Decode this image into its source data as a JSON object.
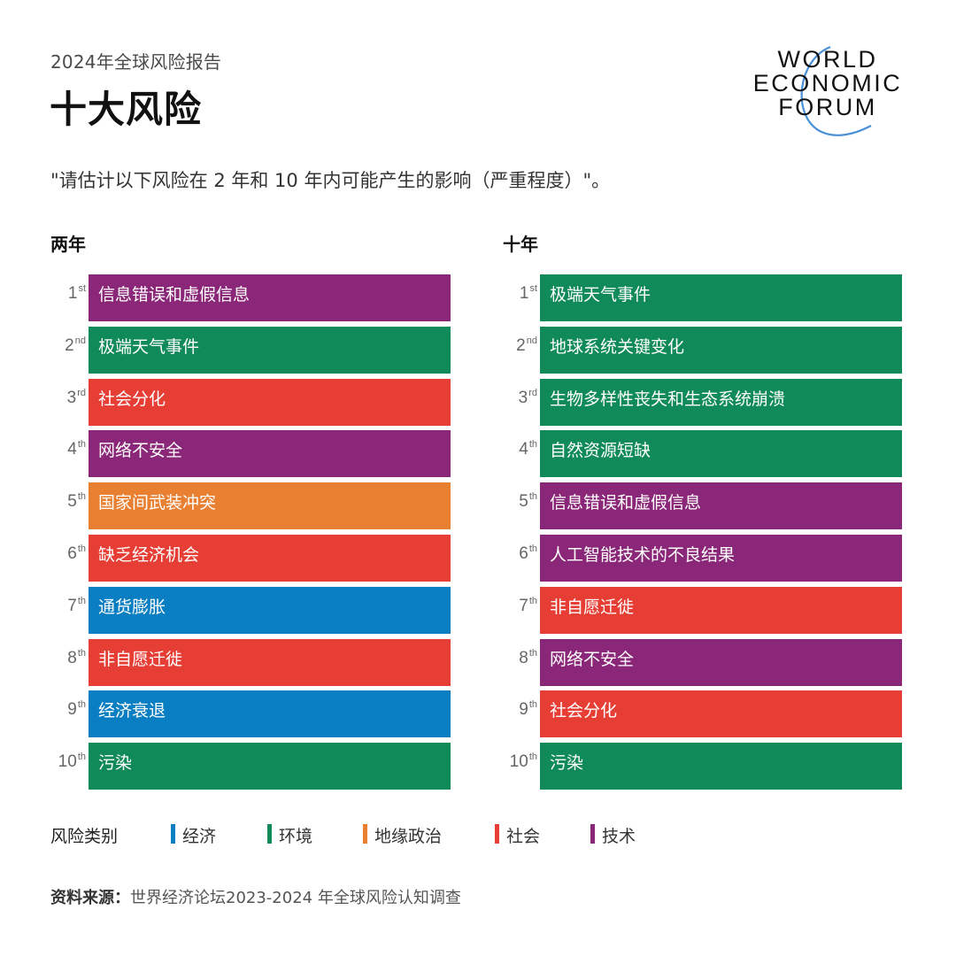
{
  "header": {
    "subtitle": "2024年全球风险报告",
    "title": "十大风险",
    "question": "\"请估计以下风险在 2 年和 10 年内可能产生的影响（严重程度）\"。"
  },
  "logo": {
    "lines": [
      "WORLD",
      "ECONOMIC",
      "FORUM"
    ],
    "arc_color": "#4a90d9"
  },
  "categories": {
    "economic": {
      "label": "经济",
      "color": "#0a7ec2"
    },
    "environmental": {
      "label": "环境",
      "color": "#0f8a58"
    },
    "geopolitical": {
      "label": "地缘政治",
      "color": "#e87f31"
    },
    "societal": {
      "label": "社会",
      "color": "#e63e35"
    },
    "technological": {
      "label": "技术",
      "color": "#8b2778"
    }
  },
  "legend": {
    "title": "风险类别",
    "items": [
      {
        "label": "经济",
        "color": "#0a7ec2"
      },
      {
        "label": "环境",
        "color": "#0f8a58"
      },
      {
        "label": "地缘政治",
        "color": "#e87f31"
      },
      {
        "label": "社会",
        "color": "#e63e35"
      },
      {
        "label": "技术",
        "color": "#8b2778"
      }
    ]
  },
  "source": {
    "label": "资料来源：",
    "text": "世界经济论坛2023-2024 年全球风险认知调查"
  },
  "chart_data": [
    {
      "type": "table",
      "title": "两年",
      "columns": [
        "rank",
        "risk",
        "category"
      ],
      "rows": [
        {
          "rank": "1",
          "suffix": "st",
          "risk": "信息错误和虚假信息",
          "category": "技术",
          "color": "#8b2778"
        },
        {
          "rank": "2",
          "suffix": "nd",
          "risk": "极端天气事件",
          "category": "环境",
          "color": "#0f8a58"
        },
        {
          "rank": "3",
          "suffix": "rd",
          "risk": "社会分化",
          "category": "社会",
          "color": "#e63e35"
        },
        {
          "rank": "4",
          "suffix": "th",
          "risk": "网络不安全",
          "category": "技术",
          "color": "#8b2778"
        },
        {
          "rank": "5",
          "suffix": "th",
          "risk": "国家间武装冲突",
          "category": "地缘政治",
          "color": "#e87f31"
        },
        {
          "rank": "6",
          "suffix": "th",
          "risk": "缺乏经济机会",
          "category": "社会",
          "color": "#e63e35"
        },
        {
          "rank": "7",
          "suffix": "th",
          "risk": "通货膨胀",
          "category": "经济",
          "color": "#0a7ec2"
        },
        {
          "rank": "8",
          "suffix": "th",
          "risk": "非自愿迁徙",
          "category": "社会",
          "color": "#e63e35"
        },
        {
          "rank": "9",
          "suffix": "th",
          "risk": "经济衰退",
          "category": "经济",
          "color": "#0a7ec2"
        },
        {
          "rank": "10",
          "suffix": "th",
          "risk": "污染",
          "category": "环境",
          "color": "#0f8a58"
        }
      ]
    },
    {
      "type": "table",
      "title": "十年",
      "columns": [
        "rank",
        "risk",
        "category"
      ],
      "rows": [
        {
          "rank": "1",
          "suffix": "st",
          "risk": "极端天气事件",
          "category": "环境",
          "color": "#0f8a58"
        },
        {
          "rank": "2",
          "suffix": "nd",
          "risk": "地球系统关键变化",
          "category": "环境",
          "color": "#0f8a58"
        },
        {
          "rank": "3",
          "suffix": "rd",
          "risk": "生物多样性丧失和生态系统崩溃",
          "category": "环境",
          "color": "#0f8a58"
        },
        {
          "rank": "4",
          "suffix": "th",
          "risk": "自然资源短缺",
          "category": "环境",
          "color": "#0f8a58"
        },
        {
          "rank": "5",
          "suffix": "th",
          "risk": "信息错误和虚假信息",
          "category": "技术",
          "color": "#8b2778"
        },
        {
          "rank": "6",
          "suffix": "th",
          "risk": "人工智能技术的不良结果",
          "category": "技术",
          "color": "#8b2778"
        },
        {
          "rank": "7",
          "suffix": "th",
          "risk": "非自愿迁徙",
          "category": "社会",
          "color": "#e63e35"
        },
        {
          "rank": "8",
          "suffix": "th",
          "risk": "网络不安全",
          "category": "技术",
          "color": "#8b2778"
        },
        {
          "rank": "9",
          "suffix": "th",
          "risk": "社会分化",
          "category": "社会",
          "color": "#e63e35"
        },
        {
          "rank": "10",
          "suffix": "th",
          "risk": "污染",
          "category": "环境",
          "color": "#0f8a58"
        }
      ]
    }
  ]
}
